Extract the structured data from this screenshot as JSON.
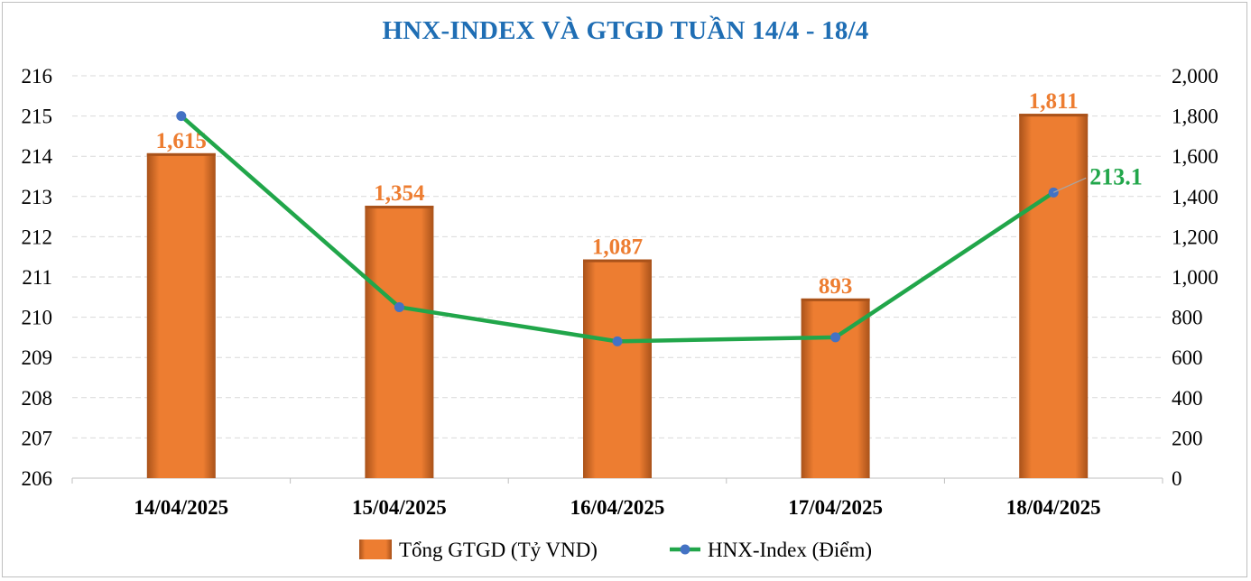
{
  "colors": {
    "bar": "#ed7d31",
    "bar_dark": "#a9521a",
    "line": "#21a64a",
    "marker": "#4472c4",
    "title": "#1f6eb4",
    "grid": "#d9d9d9",
    "axis_text": "#000000"
  },
  "chart_data": {
    "type": "bar",
    "title": "HNX-INDEX VÀ GTGD TUẦN 14/4 - 18/4",
    "categories": [
      "14/04/2025",
      "15/04/2025",
      "16/04/2025",
      "17/04/2025",
      "18/04/2025"
    ],
    "series": [
      {
        "name": "Tổng GTGD (Tỷ VND)",
        "type": "bar",
        "axis": "right",
        "values": [
          1615,
          1354,
          1087,
          893,
          1811
        ],
        "labels": [
          "1,615",
          "1,354",
          "1,087",
          "893",
          "1,811"
        ]
      },
      {
        "name": "HNX-Index (Điểm)",
        "type": "line",
        "axis": "left",
        "values": [
          215.0,
          210.25,
          209.4,
          209.5,
          213.1
        ],
        "last_label": "213.1"
      }
    ],
    "y_left": {
      "range": [
        206,
        216
      ],
      "ticks": [
        "216",
        "215",
        "214",
        "213",
        "212",
        "211",
        "210",
        "209",
        "208",
        "207",
        "206"
      ]
    },
    "y_right": {
      "range": [
        0,
        2000
      ],
      "ticks": [
        "2,000",
        "1,800",
        "1,600",
        "1,400",
        "1,200",
        "1,000",
        "800",
        "600",
        "400",
        "200",
        "0"
      ]
    },
    "grid": true,
    "legend": "bottom"
  }
}
